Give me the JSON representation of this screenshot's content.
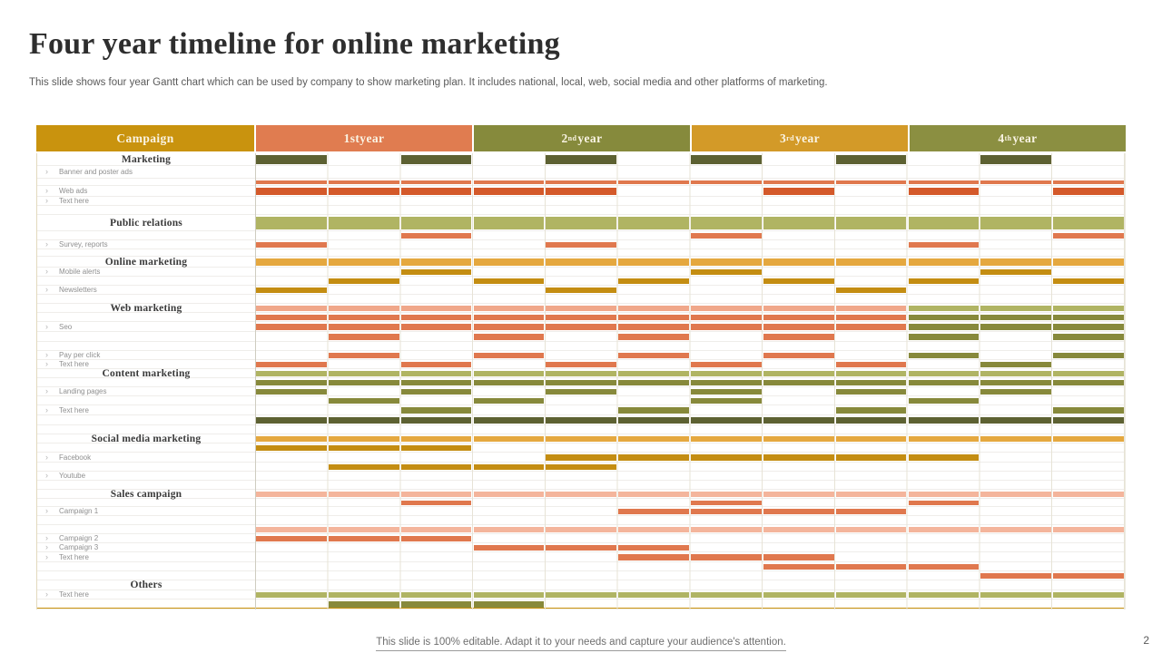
{
  "slide": {
    "title": "Four year timeline for online marketing",
    "subtitle": "This slide shows four year Gantt chart which can be used by company to  show marketing plan. It includes national, local, web, social media and other platforms of marketing.",
    "footer": "This slide is 100% editable. Adapt it to your needs and capture your audience's attention.",
    "page_number": "2"
  },
  "chart_data": {
    "type": "table",
    "title": "Four year timeline for online marketing",
    "legend_position": "none",
    "cells_per_year": 3,
    "header": {
      "campaign_label": "Campaign",
      "campaign_color": "#c9930e",
      "years": [
        {
          "base": "1st",
          "sup": "",
          "rest": " year",
          "color": "#e07c50"
        },
        {
          "base": "2",
          "sup": "nd",
          "rest": " year",
          "color": "#868a3c"
        },
        {
          "base": "3",
          "sup": "rd",
          "rest": " year",
          "color": "#d39a28"
        },
        {
          "base": "4",
          "sup": "th",
          "rest": " year",
          "color": "#8b8f41"
        }
      ]
    },
    "palette": {
      "dkolive": "#5d6132",
      "olive": "#87893b",
      "lolive": "#b0b463",
      "salmon": "#e0784e",
      "lsalmon": "#f0a78a",
      "lpink": "#f4b59c",
      "red": "#d4592a",
      "gold": "#e5a83f",
      "dkgold": "#c48d12"
    },
    "rows": [
      {
        "type": "cat",
        "label": "Marketing",
        "h": 14,
        "bars": [
          {
            "color": "dkolive",
            "cells": [
              0,
              2,
              4,
              6,
              8,
              10
            ]
          }
        ]
      },
      {
        "type": "item",
        "label": "Banner and poster ads",
        "h": 14,
        "bars": []
      },
      {
        "type": "bar",
        "label": "",
        "h": 8,
        "bars": [
          {
            "color": "salmon",
            "cells": [
              0,
              1,
              2,
              3,
              4,
              5,
              6,
              7,
              8,
              9,
              10,
              11
            ]
          }
        ]
      },
      {
        "type": "item",
        "label": "Web ads",
        "h": 12,
        "bars": [
          {
            "color": "red",
            "cells": [
              0,
              1,
              2,
              3,
              4,
              7,
              9,
              11
            ]
          }
        ]
      },
      {
        "type": "item",
        "label": "Text here",
        "h": 10,
        "bars": []
      },
      {
        "type": "sp",
        "label": "",
        "h": 10,
        "bars": []
      },
      {
        "type": "cat",
        "label": "Public relations",
        "h": 18,
        "bars": [
          {
            "color": "lolive",
            "cells": [
              0,
              1,
              2,
              3,
              4,
              5,
              6,
              7,
              8,
              9,
              10,
              11
            ]
          }
        ]
      },
      {
        "type": "bar",
        "label": "",
        "h": 10,
        "bars": [
          {
            "color": "salmon",
            "cells": [
              2,
              6,
              11
            ]
          }
        ]
      },
      {
        "type": "item",
        "label": "Survey, reports",
        "h": 10,
        "bars": [
          {
            "color": "salmon",
            "cells": [
              0,
              4,
              9
            ]
          }
        ]
      },
      {
        "type": "sp",
        "label": "",
        "h": 8,
        "bars": []
      },
      {
        "type": "cat",
        "label": "Online marketing",
        "h": 12,
        "bars": [
          {
            "color": "gold",
            "cells": [
              0,
              1,
              2,
              3,
              4,
              5,
              6,
              7,
              8,
              9,
              10,
              11
            ]
          }
        ]
      },
      {
        "type": "item",
        "label": "Mobile alerts",
        "h": 10,
        "bars": [
          {
            "color": "dkgold",
            "cells": [
              2,
              6,
              10
            ]
          }
        ]
      },
      {
        "type": "bar",
        "label": "",
        "h": 10,
        "bars": [
          {
            "color": "dkgold",
            "cells": [
              1,
              3,
              5,
              7,
              9,
              11
            ]
          }
        ]
      },
      {
        "type": "item",
        "label": "Newsletters",
        "h": 10,
        "bars": [
          {
            "color": "dkgold",
            "cells": [
              0,
              4,
              8
            ]
          }
        ]
      },
      {
        "type": "sp",
        "label": "",
        "h": 10,
        "bars": []
      },
      {
        "type": "cat",
        "label": "Web marketing",
        "h": 10,
        "bars": [
          {
            "color": "lsalmon",
            "cells": [
              0,
              1,
              2,
              3,
              4,
              5,
              6,
              7,
              8
            ]
          },
          {
            "color": "lolive",
            "cells": [
              9,
              10,
              11
            ]
          }
        ]
      },
      {
        "type": "bar",
        "label": "",
        "h": 10,
        "bars": [
          {
            "color": "salmon",
            "cells": [
              0,
              1,
              2,
              3,
              4,
              5,
              6,
              7,
              8
            ]
          },
          {
            "color": "olive",
            "cells": [
              9,
              10,
              11
            ]
          }
        ]
      },
      {
        "type": "item",
        "label": "Seo",
        "h": 11,
        "bars": [
          {
            "color": "salmon",
            "cells": [
              0,
              1,
              2,
              3,
              4,
              5,
              6,
              7,
              8
            ]
          },
          {
            "color": "olive",
            "cells": [
              9,
              10,
              11
            ]
          }
        ]
      },
      {
        "type": "bar",
        "label": "",
        "h": 11,
        "bars": [
          {
            "color": "salmon",
            "cells": [
              1,
              3,
              5,
              7
            ]
          },
          {
            "color": "olive",
            "cells": [
              9,
              11
            ]
          }
        ]
      },
      {
        "type": "sp",
        "label": "",
        "h": 10,
        "bars": []
      },
      {
        "type": "item",
        "label": "Pay per click",
        "h": 10,
        "bars": [
          {
            "color": "salmon",
            "cells": [
              1,
              3,
              5,
              7
            ]
          },
          {
            "color": "olive",
            "cells": [
              9,
              11
            ]
          }
        ]
      },
      {
        "type": "item",
        "label": "Text here",
        "h": 10,
        "bars": [
          {
            "color": "salmon",
            "cells": [
              0,
              2,
              4,
              6,
              8
            ]
          },
          {
            "color": "olive",
            "cells": [
              10
            ]
          }
        ]
      },
      {
        "type": "cat",
        "label": "Content marketing",
        "h": 10,
        "bars": [
          {
            "color": "lolive",
            "cells": [
              0,
              1,
              2,
              3,
              4,
              5,
              6,
              7,
              8,
              9,
              10,
              11
            ]
          }
        ]
      },
      {
        "type": "bar",
        "label": "",
        "h": 10,
        "bars": [
          {
            "color": "olive",
            "cells": [
              0,
              1,
              2,
              3,
              4,
              5,
              6,
              7,
              8,
              9,
              10,
              11
            ]
          }
        ]
      },
      {
        "type": "item",
        "label": "Landing pages",
        "h": 10,
        "bars": [
          {
            "color": "olive",
            "cells": [
              0,
              2,
              4,
              6,
              8,
              10
            ]
          }
        ]
      },
      {
        "type": "bar",
        "label": "",
        "h": 10,
        "bars": [
          {
            "color": "olive",
            "cells": [
              1,
              3,
              6,
              9
            ]
          }
        ]
      },
      {
        "type": "item",
        "label": "Text here",
        "h": 11,
        "bars": [
          {
            "color": "olive",
            "cells": [
              2,
              5,
              8,
              11
            ]
          }
        ]
      },
      {
        "type": "bar",
        "label": "",
        "h": 11,
        "bars": [
          {
            "color": "dkolive",
            "cells": [
              0,
              1,
              2,
              3,
              4,
              5,
              6,
              7,
              8,
              9,
              10,
              11
            ]
          }
        ]
      },
      {
        "type": "sp",
        "label": "",
        "h": 10,
        "bars": []
      },
      {
        "type": "cat",
        "label": "Social media marketing",
        "h": 10,
        "bars": [
          {
            "color": "gold",
            "cells": [
              0,
              1,
              2,
              3,
              4,
              5,
              6,
              7,
              8,
              9,
              10,
              11
            ]
          }
        ]
      },
      {
        "type": "bar",
        "label": "",
        "h": 10,
        "bars": [
          {
            "color": "dkgold",
            "cells": [
              0,
              1,
              2
            ]
          }
        ]
      },
      {
        "type": "item",
        "label": "Facebook",
        "h": 11,
        "bars": [
          {
            "color": "dkgold",
            "cells": [
              4,
              5,
              6,
              7,
              8,
              9
            ]
          }
        ]
      },
      {
        "type": "bar",
        "label": "",
        "h": 10,
        "bars": [
          {
            "color": "dkgold",
            "cells": [
              1,
              2,
              3,
              4
            ]
          }
        ]
      },
      {
        "type": "item",
        "label": "Youtube",
        "h": 10,
        "bars": []
      },
      {
        "type": "sp",
        "label": "",
        "h": 10,
        "bars": []
      },
      {
        "type": "cat",
        "label": "Sales campaign",
        "h": 10,
        "bars": [
          {
            "color": "lpink",
            "cells": [
              0,
              1,
              2,
              3,
              4,
              5,
              6,
              7,
              8,
              9,
              10,
              11
            ]
          }
        ]
      },
      {
        "type": "bar",
        "label": "",
        "h": 9,
        "bars": [
          {
            "color": "salmon",
            "cells": [
              2,
              6,
              9
            ]
          }
        ]
      },
      {
        "type": "item",
        "label": "Campaign 1",
        "h": 10,
        "bars": [
          {
            "color": "salmon",
            "cells": [
              5,
              6,
              7,
              8
            ]
          }
        ]
      },
      {
        "type": "sp",
        "label": "",
        "h": 10,
        "bars": []
      },
      {
        "type": "bar",
        "label": "",
        "h": 10,
        "bars": [
          {
            "color": "lpink",
            "cells": [
              0,
              1,
              2,
              3,
              4,
              5,
              6,
              7,
              8,
              9,
              10,
              11
            ]
          }
        ]
      },
      {
        "type": "item",
        "label": "Campaign 2",
        "h": 10,
        "bars": [
          {
            "color": "salmon",
            "cells": [
              0,
              1,
              2
            ]
          }
        ]
      },
      {
        "type": "item",
        "label": "Campaign 3",
        "h": 10,
        "bars": [
          {
            "color": "salmon",
            "cells": [
              3,
              4,
              5
            ]
          }
        ]
      },
      {
        "type": "item",
        "label": "Text here",
        "h": 11,
        "bars": [
          {
            "color": "salmon",
            "cells": [
              5,
              6,
              7
            ]
          }
        ]
      },
      {
        "type": "bar",
        "label": "",
        "h": 10,
        "bars": [
          {
            "color": "salmon",
            "cells": [
              7,
              8,
              9
            ]
          }
        ]
      },
      {
        "type": "bar",
        "label": "",
        "h": 10,
        "bars": [
          {
            "color": "salmon",
            "cells": [
              10,
              11
            ]
          }
        ]
      },
      {
        "type": "cat",
        "label": "Others",
        "h": 11,
        "bars": []
      },
      {
        "type": "item",
        "label": "Text here",
        "h": 10,
        "bars": [
          {
            "color": "lolive",
            "cells": [
              0,
              1,
              2,
              3,
              4,
              5,
              6,
              7,
              8,
              9,
              10,
              11
            ]
          }
        ]
      },
      {
        "type": "bar",
        "label": "",
        "h": 11,
        "bars": [
          {
            "color": "olive",
            "cells": [
              1,
              2,
              3
            ]
          }
        ]
      }
    ]
  }
}
